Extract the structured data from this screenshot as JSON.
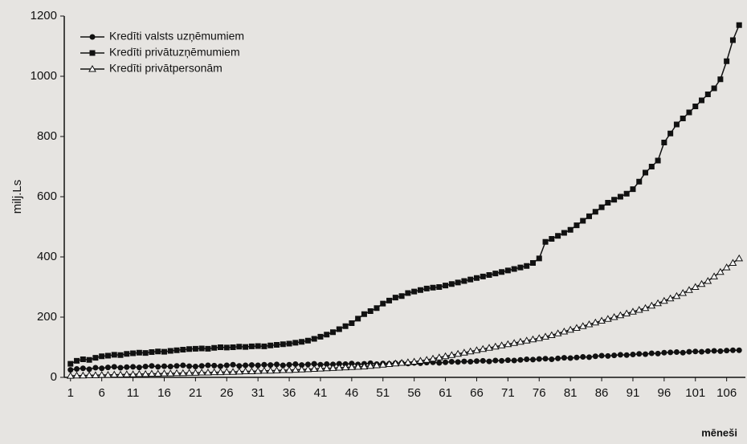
{
  "chart_data": {
    "type": "line",
    "y_label": "milj.Ls",
    "x_label": "mēneši",
    "xlim": [
      0,
      109
    ],
    "ylim": [
      0,
      1200
    ],
    "xticks": [
      1,
      6,
      11,
      16,
      21,
      26,
      31,
      36,
      41,
      46,
      51,
      56,
      61,
      66,
      71,
      76,
      81,
      86,
      91,
      96,
      101,
      106
    ],
    "yticks": [
      0,
      200,
      400,
      600,
      800,
      1000,
      1200
    ],
    "legend": "upper left",
    "x": [
      1,
      2,
      3,
      4,
      5,
      6,
      7,
      8,
      9,
      10,
      11,
      12,
      13,
      14,
      15,
      16,
      17,
      18,
      19,
      20,
      21,
      22,
      23,
      24,
      25,
      26,
      27,
      28,
      29,
      30,
      31,
      32,
      33,
      34,
      35,
      36,
      37,
      38,
      39,
      40,
      41,
      42,
      43,
      44,
      45,
      46,
      47,
      48,
      49,
      50,
      51,
      52,
      53,
      54,
      55,
      56,
      57,
      58,
      59,
      60,
      61,
      62,
      63,
      64,
      65,
      66,
      67,
      68,
      69,
      70,
      71,
      72,
      73,
      74,
      75,
      76,
      77,
      78,
      79,
      80,
      81,
      82,
      83,
      84,
      85,
      86,
      87,
      88,
      89,
      90,
      91,
      92,
      93,
      94,
      95,
      96,
      97,
      98,
      99,
      100,
      101,
      102,
      103,
      104,
      105,
      106,
      107,
      108
    ],
    "series": [
      {
        "name": "Kredīti valsts uzņēmumiem",
        "color": "#111111",
        "marker": "circle",
        "values": [
          25,
          28,
          30,
          27,
          32,
          30,
          33,
          35,
          32,
          34,
          35,
          33,
          36,
          38,
          35,
          37,
          36,
          38,
          40,
          37,
          36,
          38,
          40,
          39,
          37,
          40,
          42,
          38,
          40,
          41,
          40,
          42,
          41,
          43,
          40,
          42,
          44,
          41,
          43,
          45,
          42,
          44,
          43,
          45,
          44,
          46,
          43,
          45,
          47,
          44,
          46,
          45,
          47,
          48,
          46,
          48,
          47,
          49,
          50,
          48,
          50,
          52,
          51,
          53,
          52,
          54,
          55,
          53,
          56,
          55,
          57,
          56,
          58,
          60,
          59,
          61,
          62,
          60,
          63,
          65,
          64,
          66,
          68,
          67,
          70,
          72,
          71,
          73,
          75,
          74,
          76,
          78,
          77,
          80,
          79,
          82,
          83,
          84,
          82,
          85,
          86,
          85,
          87,
          88,
          87,
          89,
          90,
          90
        ]
      },
      {
        "name": "Kredīti privātuzņēmumiem",
        "color": "#111111",
        "marker": "square",
        "values": [
          45,
          55,
          60,
          58,
          65,
          70,
          72,
          75,
          74,
          78,
          80,
          82,
          81,
          84,
          86,
          85,
          88,
          90,
          92,
          94,
          95,
          96,
          95,
          98,
          100,
          99,
          100,
          102,
          101,
          103,
          104,
          103,
          106,
          108,
          110,
          112,
          115,
          118,
          122,
          128,
          135,
          142,
          150,
          160,
          170,
          180,
          195,
          210,
          220,
          230,
          245,
          255,
          265,
          270,
          280,
          285,
          290,
          295,
          298,
          300,
          305,
          310,
          315,
          320,
          325,
          330,
          335,
          340,
          345,
          350,
          355,
          360,
          365,
          370,
          380,
          395,
          450,
          460,
          470,
          480,
          490,
          505,
          520,
          535,
          550,
          565,
          580,
          590,
          600,
          610,
          625,
          650,
          680,
          700,
          720,
          780,
          810,
          840,
          860,
          880,
          900,
          920,
          940,
          960,
          990,
          1050,
          1120,
          1170
        ]
      },
      {
        "name": "Kredīti privātpersonām",
        "color": "#111111",
        "marker": "triangle",
        "values": [
          5,
          6,
          6,
          7,
          7,
          8,
          8,
          9,
          9,
          10,
          10,
          11,
          11,
          12,
          12,
          13,
          13,
          14,
          14,
          15,
          15,
          16,
          16,
          17,
          17,
          18,
          18,
          19,
          20,
          20,
          21,
          22,
          22,
          23,
          24,
          24,
          25,
          26,
          27,
          28,
          29,
          30,
          31,
          32,
          33,
          34,
          35,
          36,
          38,
          40,
          42,
          44,
          46,
          48,
          50,
          52,
          55,
          58,
          62,
          66,
          70,
          74,
          78,
          82,
          86,
          90,
          94,
          98,
          102,
          106,
          110,
          114,
          118,
          122,
          126,
          130,
          135,
          140,
          146,
          152,
          158,
          164,
          170,
          176,
          182,
          188,
          194,
          200,
          206,
          212,
          218,
          224,
          230,
          238,
          246,
          254,
          262,
          270,
          280,
          290,
          300,
          310,
          320,
          335,
          350,
          365,
          380,
          395
        ]
      }
    ]
  }
}
